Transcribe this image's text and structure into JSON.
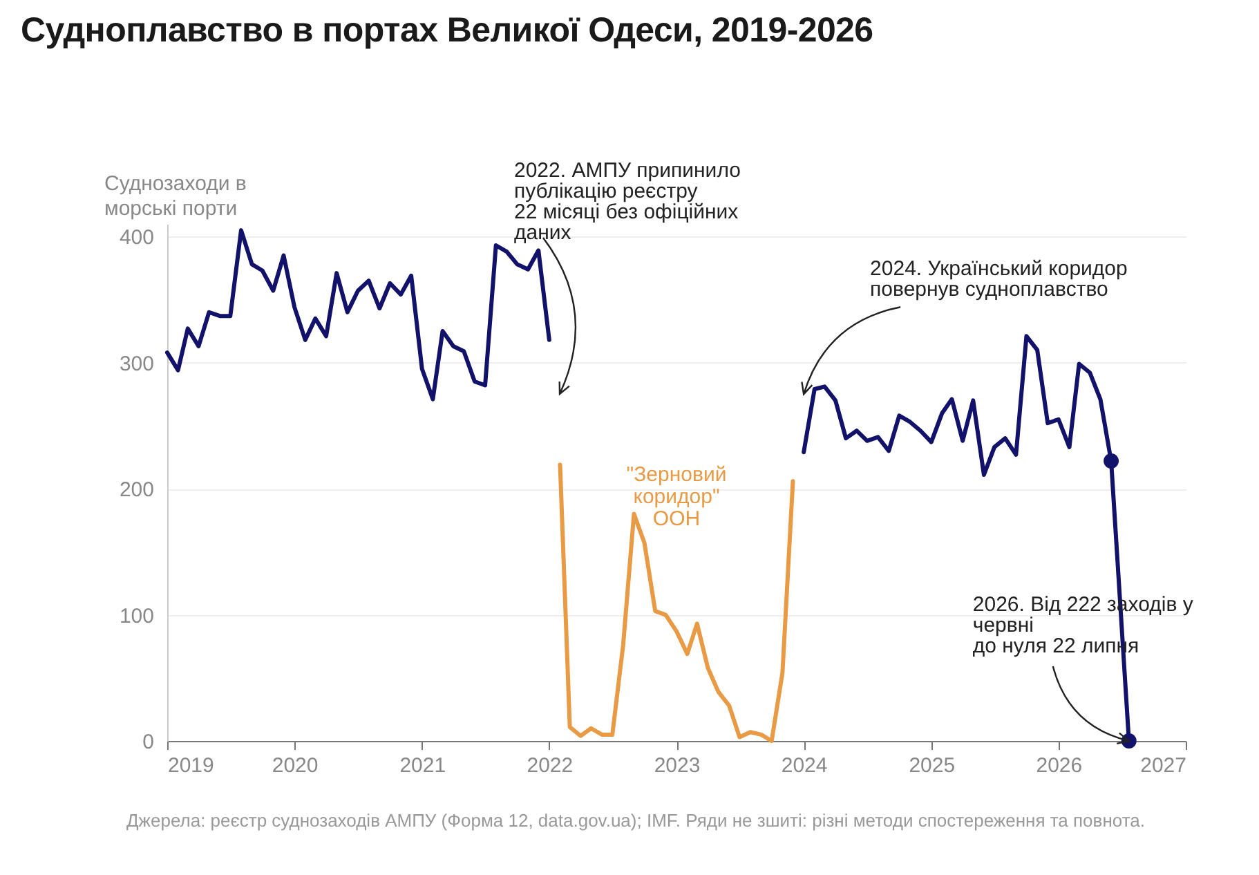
{
  "chart_data": {
    "type": "line",
    "title": "Судноплавство в портах Великої Одеси, 2019-2026",
    "ylabel": "Суднозаходи в\nморські порти",
    "xlim": [
      "2019",
      "2027"
    ],
    "xticks": [
      {
        "value": "2019",
        "label": "2019"
      },
      {
        "value": "2020",
        "label": "2020"
      },
      {
        "value": "2021",
        "label": "2021"
      },
      {
        "value": "2022",
        "label": "2022"
      },
      {
        "value": "2023",
        "label": "2023"
      },
      {
        "value": "2024",
        "label": "2024"
      },
      {
        "value": "2025",
        "label": "2025"
      },
      {
        "value": "2026",
        "label": "2026"
      },
      {
        "value": "2027",
        "label": "2027"
      }
    ],
    "ylim": [
      0,
      410
    ],
    "yticks": [
      0,
      100,
      200,
      300,
      400
    ],
    "grid": "y",
    "series": [
      {
        "color": "#12126b",
        "x": [
          "2019-01",
          "2019-02",
          "2019-03",
          "2019-04",
          "2019-05",
          "2019-06",
          "2019-07",
          "2019-08",
          "2019-09",
          "2019-10",
          "2019-11",
          "2019-12",
          "2020-01",
          "2020-02",
          "2020-03",
          "2020-04",
          "2020-05",
          "2020-06",
          "2020-07",
          "2020-08",
          "2020-09",
          "2020-10",
          "2020-11",
          "2020-12",
          "2021-01",
          "2021-02",
          "2021-03",
          "2021-04",
          "2021-05",
          "2021-06",
          "2021-07",
          "2021-08",
          "2021-09",
          "2021-10",
          "2021-11",
          "2021-12",
          "2022-01"
        ],
        "values": [
          308,
          294,
          327,
          313,
          340,
          337,
          337,
          405,
          378,
          373,
          357,
          385,
          344,
          318,
          335,
          321,
          371,
          340,
          357,
          365,
          343,
          363,
          354,
          369,
          295,
          271,
          325,
          313,
          309,
          285,
          282,
          393,
          388,
          378,
          374,
          389,
          318
        ]
      },
      {
        "name": "\"Зерновий коридор\" ООН",
        "color": "#e89a45",
        "x": [
          "2022-02",
          "2022-03",
          "2022-04",
          "2022-05",
          "2022-06",
          "2022-07",
          "2022-08",
          "2022-09",
          "2022-10",
          "2022-11",
          "2022-12",
          "2023-01",
          "2023-02",
          "2023-03",
          "2023-04",
          "2023-05",
          "2023-06",
          "2023-07",
          "2023-08",
          "2023-09",
          "2023-10",
          "2023-11",
          "2023-12"
        ],
        "values": [
          219,
          11,
          4,
          10,
          5,
          5,
          76,
          180,
          157,
          103,
          100,
          87,
          69,
          93,
          58,
          39,
          28,
          3,
          7,
          5,
          0,
          54,
          206
        ]
      },
      {
        "color": "#12126b",
        "x": [
          "2024-01",
          "2024-02",
          "2024-03",
          "2024-04",
          "2024-05",
          "2024-06",
          "2024-07",
          "2024-08",
          "2024-09",
          "2024-10",
          "2024-11",
          "2024-12",
          "2025-01",
          "2025-02",
          "2025-03",
          "2025-04",
          "2025-05",
          "2025-06",
          "2025-07",
          "2025-08",
          "2025-09",
          "2025-10",
          "2025-11",
          "2025-12",
          "2026-01",
          "2026-02",
          "2026-03",
          "2026-04",
          "2026-05",
          "2026-06",
          "2026-07-22"
        ],
        "values": [
          229,
          279,
          281,
          270,
          240,
          246,
          238,
          241,
          230,
          258,
          253,
          246,
          237,
          260,
          271,
          238,
          270,
          211,
          233,
          240,
          227,
          321,
          310,
          252,
          255,
          233,
          299,
          292,
          271,
          222,
          0
        ]
      },
      {
        "type": "scatter",
        "color": "#12126b",
        "x": [
          "2026-06",
          "2026-07-22"
        ],
        "values": [
          222,
          0
        ]
      }
    ],
    "annotations": [
      "2022. АМПУ припинило\nпублікацію реєстру\n22 місяці без офіційних\nданих",
      {
        "text": "2024. Український коридор\nповернув судноплавство",
        "x": "2024-01",
        "y": 275
      },
      {
        "text": "2026. Від 222 заходів у\nчервні\nдо нуля 22 липня",
        "x": "2026-07-22",
        "y": 0
      },
      "Джерела: реєстр суднозаходів АМПУ (Форма 12, data.gov.ua); IMF. Ряди не зшиті: різні методи спостереження та повнота."
    ]
  }
}
